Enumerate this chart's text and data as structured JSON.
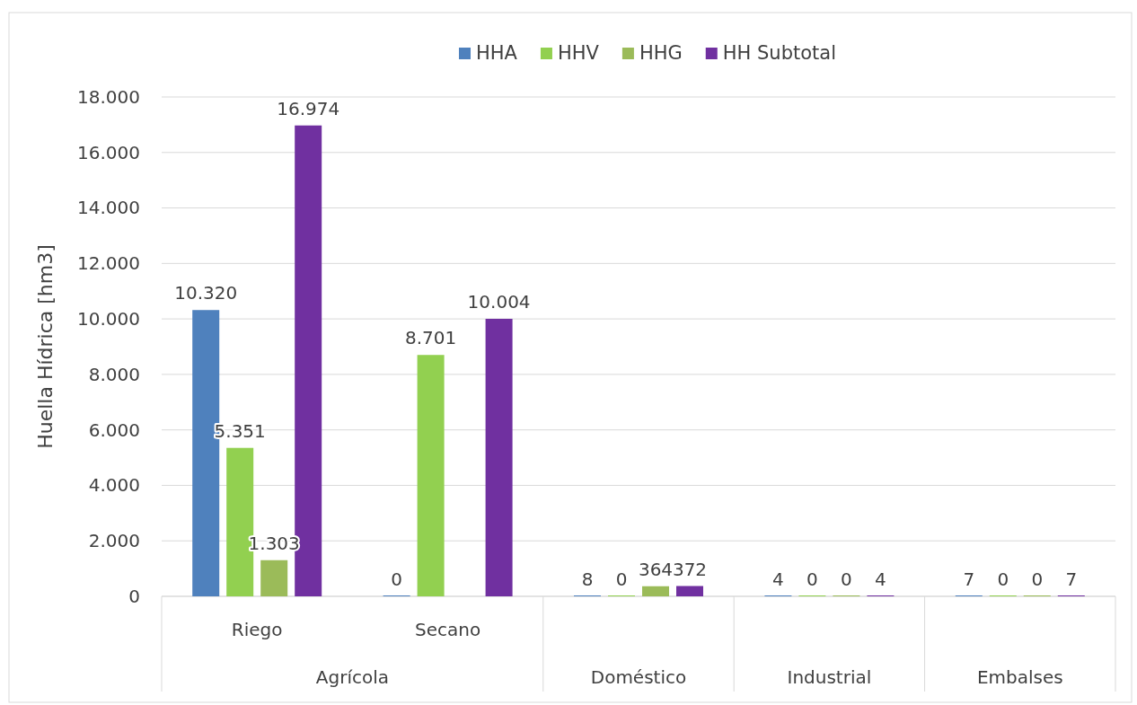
{
  "chart_data": {
    "type": "bar",
    "ylabel": "Huella Hídrica [hm3]",
    "categories": [
      "Riego",
      "Secano",
      "Doméstico",
      "Industrial",
      "Embalses"
    ],
    "annotations": [
      "Agrícola"
    ],
    "series": [
      {
        "name": "HHA",
        "color": "#4f81bd",
        "values": [
          10320,
          0,
          8,
          4,
          7
        ],
        "value_labels": [
          "10.320",
          "0",
          "8",
          "4",
          "7"
        ]
      },
      {
        "name": "HHV",
        "color": "#92d050",
        "values": [
          5351,
          8701,
          0,
          0,
          0
        ],
        "value_labels": [
          "5.351",
          "8.701",
          "0",
          "0",
          "0"
        ]
      },
      {
        "name": "HHG",
        "color": "#9bbb59",
        "values": [
          1303,
          null,
          364,
          0,
          0
        ],
        "value_labels": [
          "1.303",
          null,
          "364",
          "0",
          "0"
        ]
      },
      {
        "name": "HH Subtotal",
        "color": "#7030a0",
        "values": [
          16974,
          10004,
          372,
          4,
          7
        ],
        "value_labels": [
          "16.974",
          "10.004",
          "372",
          "4",
          "7"
        ]
      }
    ],
    "ylim": [
      0,
      18000
    ],
    "yticks": [
      {
        "value": 0,
        "label": "0"
      },
      {
        "value": 2000,
        "label": "2.000"
      },
      {
        "value": 4000,
        "label": "4.000"
      },
      {
        "value": 6000,
        "label": "6.000"
      },
      {
        "value": 8000,
        "label": "8.000"
      },
      {
        "value": 10000,
        "label": "10.000"
      },
      {
        "value": 12000,
        "label": "12.000"
      },
      {
        "value": 14000,
        "label": "14.000"
      },
      {
        "value": 16000,
        "label": "16.000"
      },
      {
        "value": 18000,
        "label": "18.000"
      }
    ],
    "grid": "y",
    "legend": "top"
  }
}
